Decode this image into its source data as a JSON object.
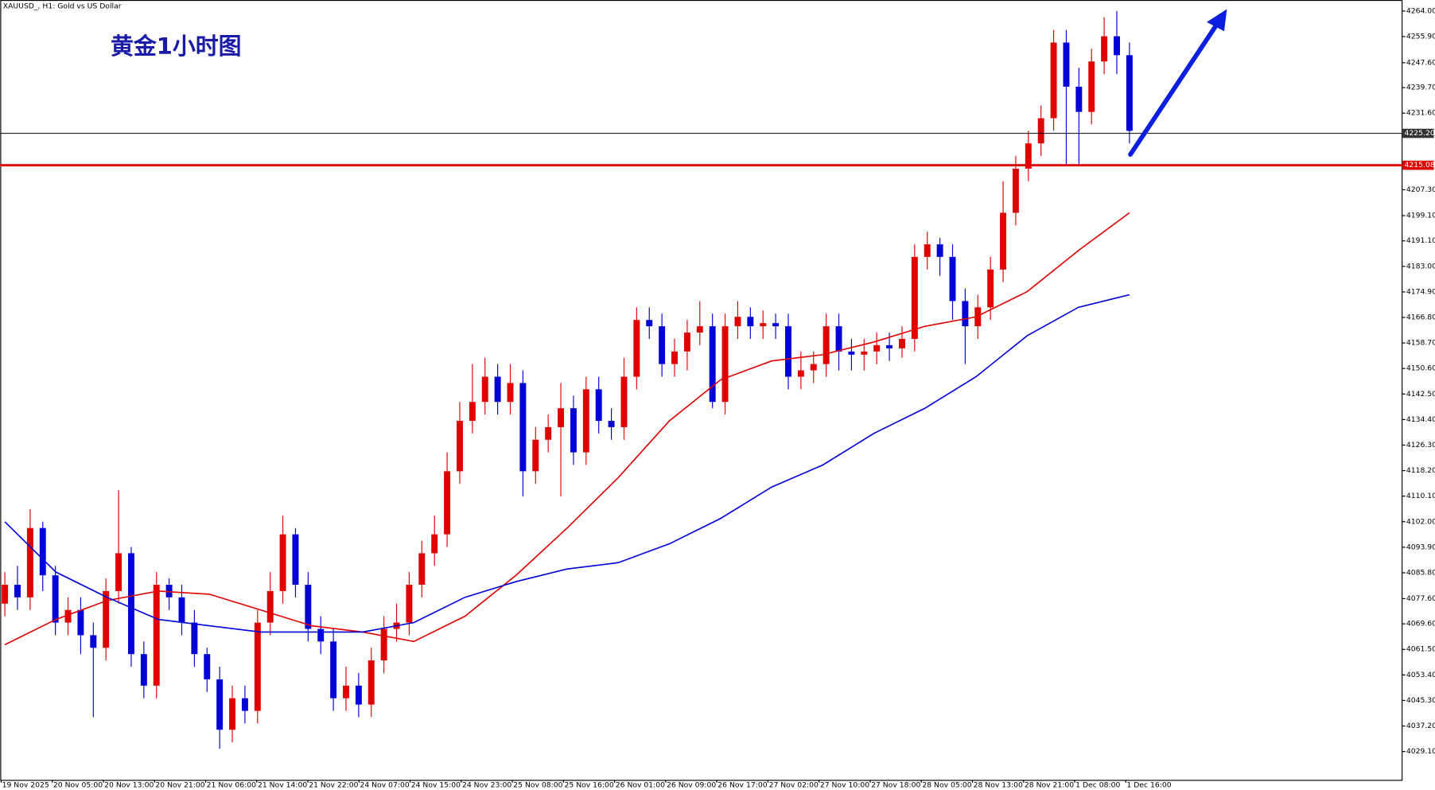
{
  "chart_data": {
    "type": "candlestick",
    "title": "XAUUSD_, H1:  Gold vs US Dollar",
    "annotation": "黄金1小时图",
    "categories": [
      "19 Nov 2025",
      "20 Nov 05:00",
      "20 Nov 13:00",
      "20 Nov 21:00",
      "21 Nov 06:00",
      "21 Nov 14:00",
      "21 Nov 22:00",
      "24 Nov 07:00",
      "24 Nov 15:00",
      "24 Nov 23:00",
      "25 Nov 08:00",
      "25 Nov 16:00",
      "26 Nov 01:00",
      "26 Nov 09:00",
      "26 Nov 17:00",
      "27 Nov 02:00",
      "27 Nov 10:00",
      "27 Nov 18:00",
      "28 Nov 05:00",
      "28 Nov 13:00",
      "28 Nov 21:00",
      "1 Dec 08:00",
      "1 Dec 16:00"
    ],
    "up_color": "#e00000",
    "down_color": "#0000d8",
    "open": [
      4076,
      4082,
      4078,
      4100,
      4085,
      4070,
      4074,
      4066,
      4062,
      4080,
      4092,
      4060,
      4050,
      4082,
      4078,
      4070,
      4060,
      4052,
      4036,
      4046,
      4042,
      4070,
      4080,
      4098,
      4082,
      4068,
      4064,
      4046,
      4050,
      4044,
      4058,
      4068,
      4070,
      4082,
      4092,
      4098,
      4118,
      4134,
      4140,
      4148,
      4140,
      4146,
      4118,
      4128,
      4132,
      4138,
      4124,
      4144,
      4134,
      4132,
      4148,
      4166,
      4164,
      4152,
      4156,
      4162,
      4164,
      4140,
      4164,
      4167,
      4164,
      4165,
      4164,
      4148,
      4150,
      4152,
      4164,
      4156,
      4155,
      4156,
      4158,
      4157,
      4160,
      4186,
      4190,
      4186,
      4172,
      4164,
      4170,
      4182,
      4200,
      4214,
      4222,
      4230,
      4254,
      4240,
      4232,
      4248,
      4256,
      4250
    ],
    "high": [
      4086,
      4088,
      4106,
      4102,
      4088,
      4078,
      4078,
      4070,
      4084,
      4112,
      4094,
      4064,
      4086,
      4084,
      4082,
      4074,
      4062,
      4056,
      4050,
      4050,
      4074,
      4086,
      4104,
      4100,
      4086,
      4072,
      4068,
      4056,
      4054,
      4062,
      4072,
      4076,
      4086,
      4096,
      4104,
      4124,
      4140,
      4152,
      4154,
      4152,
      4152,
      4150,
      4132,
      4136,
      4146,
      4142,
      4148,
      4148,
      4138,
      4154,
      4170,
      4170,
      4168,
      4160,
      4166,
      4172,
      4168,
      4168,
      4172,
      4170,
      4169,
      4168,
      4168,
      4156,
      4156,
      4168,
      4168,
      4160,
      4160,
      4162,
      4162,
      4164,
      4190,
      4194,
      4192,
      4190,
      4176,
      4174,
      4186,
      4210,
      4218,
      4226,
      4234,
      4258,
      4258,
      4246,
      4252,
      4262,
      4264,
      4254
    ],
    "low": [
      4072,
      4074,
      4074,
      4080,
      4066,
      4066,
      4060,
      4040,
      4058,
      4076,
      4056,
      4046,
      4046,
      4074,
      4066,
      4056,
      4048,
      4030,
      4032,
      4038,
      4038,
      4066,
      4076,
      4078,
      4064,
      4060,
      4042,
      4042,
      4040,
      4040,
      4054,
      4064,
      4066,
      4078,
      4088,
      4094,
      4114,
      4130,
      4136,
      4136,
      4136,
      4110,
      4114,
      4124,
      4110,
      4120,
      4120,
      4130,
      4128,
      4128,
      4144,
      4160,
      4148,
      4148,
      4150,
      4158,
      4138,
      4136,
      4160,
      4160,
      4160,
      4160,
      4144,
      4144,
      4146,
      4148,
      4150,
      4150,
      4150,
      4152,
      4153,
      4154,
      4156,
      4182,
      4180,
      4166,
      4152,
      4160,
      4166,
      4178,
      4196,
      4210,
      4218,
      4226,
      4215,
      4215,
      4228,
      4244,
      4244,
      4222
    ],
    "close": [
      4082,
      4078,
      4100,
      4085,
      4070,
      4074,
      4066,
      4062,
      4080,
      4092,
      4060,
      4050,
      4082,
      4078,
      4070,
      4060,
      4052,
      4036,
      4046,
      4042,
      4070,
      4080,
      4098,
      4082,
      4068,
      4064,
      4046,
      4050,
      4044,
      4058,
      4068,
      4070,
      4082,
      4092,
      4098,
      4118,
      4134,
      4140,
      4148,
      4140,
      4146,
      4118,
      4128,
      4132,
      4138,
      4124,
      4144,
      4134,
      4132,
      4148,
      4166,
      4164,
      4152,
      4156,
      4162,
      4164,
      4140,
      4164,
      4167,
      4164,
      4165,
      4164,
      4148,
      4150,
      4152,
      4164,
      4156,
      4155,
      4156,
      4158,
      4157,
      4160,
      4186,
      4190,
      4186,
      4172,
      4164,
      4170,
      4182,
      4200,
      4214,
      4222,
      4230,
      4254,
      4240,
      4232,
      4248,
      4256,
      4250,
      4226
    ],
    "series": [
      {
        "color": "#e00000",
        "values": [
          4063,
          4071,
          4077,
          4080,
          4079,
          4074,
          4069,
          4067,
          4064,
          4072,
          4085,
          4100,
          4116,
          4134,
          4147,
          4153,
          4155,
          4159,
          4164,
          4167,
          4175,
          4188,
          4200
        ]
      },
      {
        "color": "#0000d8",
        "values": [
          4102,
          4086,
          4078,
          4071,
          4069,
          4067,
          4067,
          4067,
          4070,
          4078,
          4083,
          4087,
          4089,
          4095,
          4103,
          4113,
          4120,
          4130,
          4138,
          4148,
          4161,
          4170,
          4174
        ]
      }
    ],
    "levels": [
      {
        "value": 4225.2,
        "label": "4225.20",
        "color": "#000000"
      },
      {
        "value": 4215.08,
        "label": "4215.08",
        "color": "#e00000"
      }
    ],
    "ylim": [
      4020.1,
      4267.5
    ],
    "yticks": [
      {
        "value": 4264,
        "label": "4264.00"
      },
      {
        "value": 4255.9,
        "label": "4255.90"
      },
      {
        "value": 4247.6,
        "label": "4247.60"
      },
      {
        "value": 4239.7,
        "label": "4239.70"
      },
      {
        "value": 4231.6,
        "label": "4231.60"
      },
      {
        "value": 4207.3,
        "label": "4207.30"
      },
      {
        "value": 4199.1,
        "label": "4199.10"
      },
      {
        "value": 4191.1,
        "label": "4191.10"
      },
      {
        "value": 4183,
        "label": "4183.00"
      },
      {
        "value": 4174.9,
        "label": "4174.90"
      },
      {
        "value": 4166.8,
        "label": "4166.80"
      },
      {
        "value": 4158.7,
        "label": "4158.70"
      },
      {
        "value": 4150.6,
        "label": "4150.60"
      },
      {
        "value": 4142.5,
        "label": "4142.50"
      },
      {
        "value": 4134.4,
        "label": "4134.40"
      },
      {
        "value": 4126.3,
        "label": "4126.30"
      },
      {
        "value": 4118.2,
        "label": "4118.20"
      },
      {
        "value": 4110.1,
        "label": "4110.10"
      },
      {
        "value": 4102,
        "label": "4102.00"
      },
      {
        "value": 4093.9,
        "label": "4093.90"
      },
      {
        "value": 4085.8,
        "label": "4085.80"
      },
      {
        "value": 4077.6,
        "label": "4077.60"
      },
      {
        "value": 4069.6,
        "label": "4069.60"
      },
      {
        "value": 4061.5,
        "label": "4061.50"
      },
      {
        "value": 4053.4,
        "label": "4053.40"
      },
      {
        "value": 4045.3,
        "label": "4045.30"
      },
      {
        "value": 4037.2,
        "label": "4037.20"
      },
      {
        "value": 4029.1,
        "label": "4029.10"
      }
    ]
  }
}
